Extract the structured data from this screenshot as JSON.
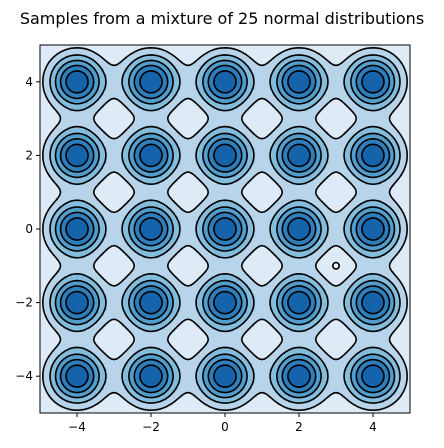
{
  "chart_data": {
    "type": "heatmap",
    "title": "Samples from a mixture of 25 normal distributions",
    "xlabel": "",
    "ylabel": "",
    "xlim": [
      -5,
      5
    ],
    "ylim": [
      -5,
      5
    ],
    "xticks": [
      -4,
      -2,
      0,
      2,
      4
    ],
    "yticks": [
      -4,
      -2,
      0,
      2,
      4
    ],
    "xtick_labels": [
      "−4",
      "−2",
      "0",
      "2",
      "4"
    ],
    "ytick_labels": [
      "−4",
      "−2",
      "0",
      "2",
      "4"
    ],
    "grid": false,
    "legend": "none",
    "plot_style": "filled contour with black contour lines",
    "component_centers_x": [
      -4,
      -2,
      0,
      2,
      4
    ],
    "component_centers_y": [
      -4,
      -2,
      0,
      2,
      4
    ],
    "component_std": 0.5,
    "outlier_point": {
      "x": 3,
      "y": -1
    },
    "colors": [
      "#deebf7",
      "#b7d4ea",
      "#84bcdb",
      "#529dcc",
      "#2f7ebc",
      "#1563aa"
    ],
    "line_color": "#000000"
  }
}
